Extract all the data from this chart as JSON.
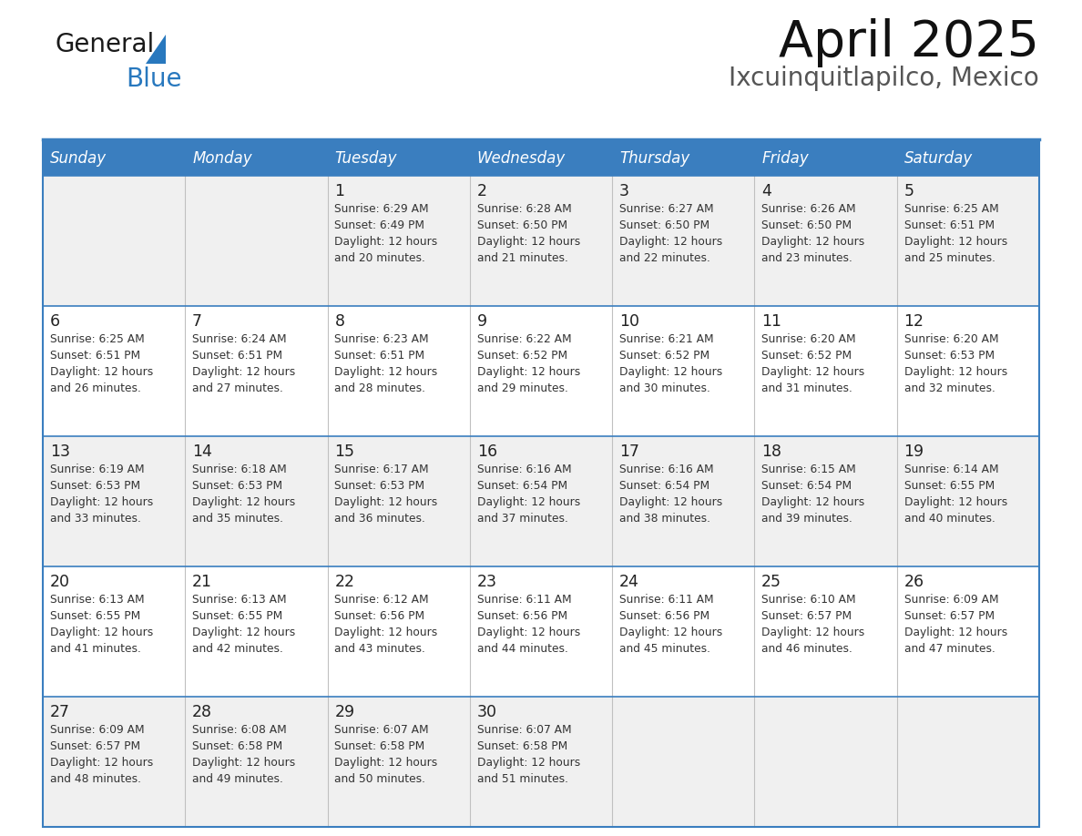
{
  "title": "April 2025",
  "subtitle": "Ixcuinquitlapilco, Mexico",
  "header_bg_color": "#3a7ebf",
  "header_text_color": "#ffffff",
  "row_bg_odd": "#f0f0f0",
  "row_bg_even": "#ffffff",
  "border_color": "#3a7ebf",
  "text_color": "#333333",
  "days_of_week": [
    "Sunday",
    "Monday",
    "Tuesday",
    "Wednesday",
    "Thursday",
    "Friday",
    "Saturday"
  ],
  "calendar": [
    [
      {
        "day": "",
        "sunrise": "",
        "sunset": "",
        "daylight": ""
      },
      {
        "day": "",
        "sunrise": "",
        "sunset": "",
        "daylight": ""
      },
      {
        "day": "1",
        "sunrise": "6:29 AM",
        "sunset": "6:49 PM",
        "daylight": "12 hours and 20 minutes."
      },
      {
        "day": "2",
        "sunrise": "6:28 AM",
        "sunset": "6:50 PM",
        "daylight": "12 hours and 21 minutes."
      },
      {
        "day": "3",
        "sunrise": "6:27 AM",
        "sunset": "6:50 PM",
        "daylight": "12 hours and 22 minutes."
      },
      {
        "day": "4",
        "sunrise": "6:26 AM",
        "sunset": "6:50 PM",
        "daylight": "12 hours and 23 minutes."
      },
      {
        "day": "5",
        "sunrise": "6:25 AM",
        "sunset": "6:51 PM",
        "daylight": "12 hours and 25 minutes."
      }
    ],
    [
      {
        "day": "6",
        "sunrise": "6:25 AM",
        "sunset": "6:51 PM",
        "daylight": "12 hours and 26 minutes."
      },
      {
        "day": "7",
        "sunrise": "6:24 AM",
        "sunset": "6:51 PM",
        "daylight": "12 hours and 27 minutes."
      },
      {
        "day": "8",
        "sunrise": "6:23 AM",
        "sunset": "6:51 PM",
        "daylight": "12 hours and 28 minutes."
      },
      {
        "day": "9",
        "sunrise": "6:22 AM",
        "sunset": "6:52 PM",
        "daylight": "12 hours and 29 minutes."
      },
      {
        "day": "10",
        "sunrise": "6:21 AM",
        "sunset": "6:52 PM",
        "daylight": "12 hours and 30 minutes."
      },
      {
        "day": "11",
        "sunrise": "6:20 AM",
        "sunset": "6:52 PM",
        "daylight": "12 hours and 31 minutes."
      },
      {
        "day": "12",
        "sunrise": "6:20 AM",
        "sunset": "6:53 PM",
        "daylight": "12 hours and 32 minutes."
      }
    ],
    [
      {
        "day": "13",
        "sunrise": "6:19 AM",
        "sunset": "6:53 PM",
        "daylight": "12 hours and 33 minutes."
      },
      {
        "day": "14",
        "sunrise": "6:18 AM",
        "sunset": "6:53 PM",
        "daylight": "12 hours and 35 minutes."
      },
      {
        "day": "15",
        "sunrise": "6:17 AM",
        "sunset": "6:53 PM",
        "daylight": "12 hours and 36 minutes."
      },
      {
        "day": "16",
        "sunrise": "6:16 AM",
        "sunset": "6:54 PM",
        "daylight": "12 hours and 37 minutes."
      },
      {
        "day": "17",
        "sunrise": "6:16 AM",
        "sunset": "6:54 PM",
        "daylight": "12 hours and 38 minutes."
      },
      {
        "day": "18",
        "sunrise": "6:15 AM",
        "sunset": "6:54 PM",
        "daylight": "12 hours and 39 minutes."
      },
      {
        "day": "19",
        "sunrise": "6:14 AM",
        "sunset": "6:55 PM",
        "daylight": "12 hours and 40 minutes."
      }
    ],
    [
      {
        "day": "20",
        "sunrise": "6:13 AM",
        "sunset": "6:55 PM",
        "daylight": "12 hours and 41 minutes."
      },
      {
        "day": "21",
        "sunrise": "6:13 AM",
        "sunset": "6:55 PM",
        "daylight": "12 hours and 42 minutes."
      },
      {
        "day": "22",
        "sunrise": "6:12 AM",
        "sunset": "6:56 PM",
        "daylight": "12 hours and 43 minutes."
      },
      {
        "day": "23",
        "sunrise": "6:11 AM",
        "sunset": "6:56 PM",
        "daylight": "12 hours and 44 minutes."
      },
      {
        "day": "24",
        "sunrise": "6:11 AM",
        "sunset": "6:56 PM",
        "daylight": "12 hours and 45 minutes."
      },
      {
        "day": "25",
        "sunrise": "6:10 AM",
        "sunset": "6:57 PM",
        "daylight": "12 hours and 46 minutes."
      },
      {
        "day": "26",
        "sunrise": "6:09 AM",
        "sunset": "6:57 PM",
        "daylight": "12 hours and 47 minutes."
      }
    ],
    [
      {
        "day": "27",
        "sunrise": "6:09 AM",
        "sunset": "6:57 PM",
        "daylight": "12 hours and 48 minutes."
      },
      {
        "day": "28",
        "sunrise": "6:08 AM",
        "sunset": "6:58 PM",
        "daylight": "12 hours and 49 minutes."
      },
      {
        "day": "29",
        "sunrise": "6:07 AM",
        "sunset": "6:58 PM",
        "daylight": "12 hours and 50 minutes."
      },
      {
        "day": "30",
        "sunrise": "6:07 AM",
        "sunset": "6:58 PM",
        "daylight": "12 hours and 51 minutes."
      },
      {
        "day": "",
        "sunrise": "",
        "sunset": "",
        "daylight": ""
      },
      {
        "day": "",
        "sunrise": "",
        "sunset": "",
        "daylight": ""
      },
      {
        "day": "",
        "sunrise": "",
        "sunset": "",
        "daylight": ""
      }
    ]
  ],
  "logo_text_general": "General",
  "logo_text_blue": "Blue",
  "logo_color_general": "#1a1a1a",
  "logo_color_blue": "#2878be",
  "logo_triangle_color": "#2878be",
  "fig_width": 11.88,
  "fig_height": 9.18,
  "dpi": 100
}
